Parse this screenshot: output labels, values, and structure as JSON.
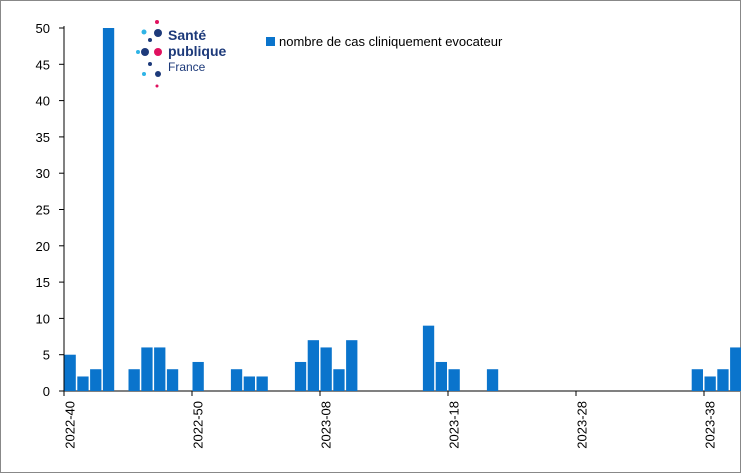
{
  "chart_data": {
    "type": "bar",
    "legend": "nombre de cas cliniquement evocateur",
    "logo": [
      "Santé",
      "publique",
      "France"
    ],
    "color": "#0a74cc",
    "categories": [
      "2022-40",
      null,
      null,
      null,
      null,
      null,
      null,
      null,
      null,
      null,
      "2022-50",
      null,
      null,
      null,
      null,
      null,
      null,
      null,
      null,
      null,
      "2023-08",
      null,
      null,
      null,
      null,
      null,
      null,
      null,
      null,
      null,
      "2023-18",
      null,
      null,
      null,
      null,
      null,
      null,
      null,
      null,
      null,
      "2023-28",
      null,
      null,
      null,
      null,
      null,
      null,
      null,
      null,
      null,
      "2023-38",
      null,
      null
    ],
    "values": [
      5,
      2,
      3,
      50,
      0,
      3,
      6,
      6,
      3,
      0,
      4,
      0,
      0,
      3,
      2,
      2,
      0,
      0,
      4,
      7,
      6,
      3,
      7,
      0,
      0,
      0,
      0,
      0,
      9,
      4,
      3,
      0,
      0,
      3,
      0,
      0,
      0,
      0,
      0,
      0,
      0,
      0,
      0,
      0,
      0,
      0,
      0,
      0,
      0,
      3,
      2,
      3,
      6
    ],
    "ylim": [
      0,
      50
    ],
    "yticks": [
      0,
      5,
      10,
      15,
      20,
      25,
      30,
      35,
      40,
      45,
      50
    ],
    "grid": false
  }
}
